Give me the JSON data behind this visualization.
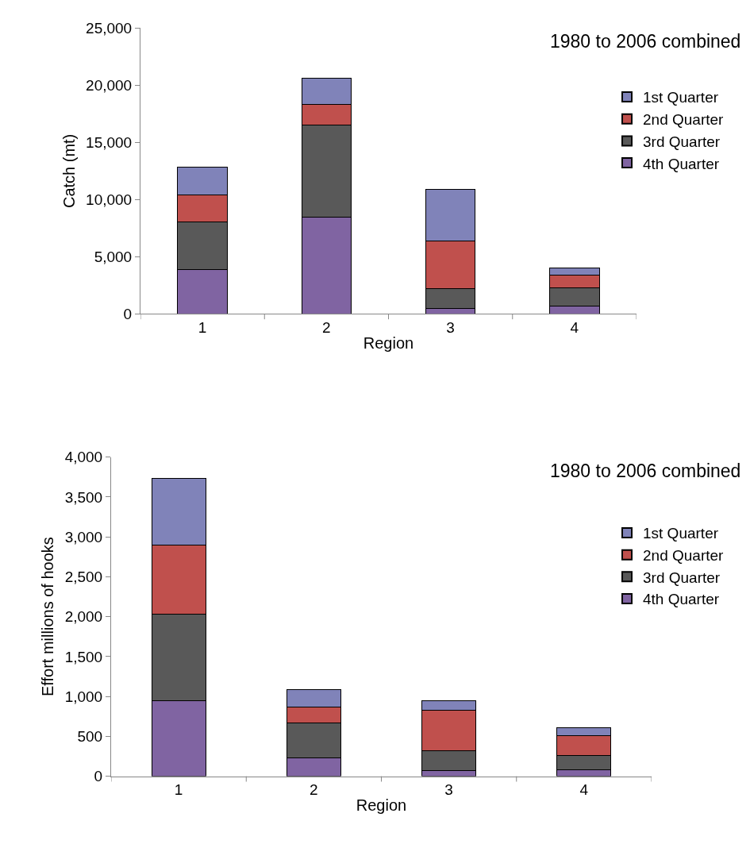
{
  "chart_data": [
    {
      "type": "bar",
      "stacked": true,
      "categories": [
        "1",
        "2",
        "3",
        "4"
      ],
      "xlabel": "Region",
      "ylabel": "Catch (mt)",
      "annotations": [
        "1980 to 2006 combined"
      ],
      "ylim": [
        0,
        25000
      ],
      "yticks": [
        0,
        {
          "value": 5000,
          "label": "5,000"
        },
        {
          "value": 10000,
          "label": "10,000"
        },
        {
          "value": 15000,
          "label": "15,000"
        },
        {
          "value": 20000,
          "label": "20,000"
        },
        {
          "value": 25000,
          "label": "25,000"
        }
      ],
      "legend": "top right",
      "grid": false,
      "series": [
        {
          "name": "4th Quarter",
          "color": "#8064a2",
          "values": [
            3850,
            8470,
            480,
            680
          ]
        },
        {
          "name": "3rd Quarter",
          "color": "#595959",
          "values": [
            4200,
            8080,
            1720,
            1610
          ]
        },
        {
          "name": "2nd Quarter",
          "color": "#c0504d",
          "values": [
            2370,
            1750,
            4160,
            1130
          ]
        },
        {
          "name": "1st Quarter",
          "color": "#8083b9",
          "values": [
            2400,
            2350,
            4520,
            560
          ]
        }
      ]
    },
    {
      "type": "bar",
      "stacked": true,
      "categories": [
        "1",
        "2",
        "3",
        "4"
      ],
      "xlabel": "Region",
      "ylabel": "Effort millions of hooks",
      "annotations": [
        "1980 to 2006 combined"
      ],
      "ylim": [
        0,
        4000
      ],
      "yticks": [
        0,
        500,
        {
          "value": 1000,
          "label": "1,000"
        },
        {
          "value": 1500,
          "label": "1,500"
        },
        {
          "value": 2000,
          "label": "2,000"
        },
        {
          "value": 2500,
          "label": "2,500"
        },
        {
          "value": 3000,
          "label": "3,000"
        },
        {
          "value": 3500,
          "label": "3,500"
        },
        {
          "value": 4000,
          "label": "4,000"
        }
      ],
      "legend": "top right",
      "grid": false,
      "series": [
        {
          "name": "4th Quarter",
          "color": "#8064a2",
          "values": [
            945,
            228,
            70,
            83
          ]
        },
        {
          "name": "3rd Quarter",
          "color": "#595959",
          "values": [
            1085,
            442,
            245,
            175
          ]
        },
        {
          "name": "2nd Quarter",
          "color": "#c0504d",
          "values": [
            866,
            200,
            507,
            249
          ]
        },
        {
          "name": "1st Quarter",
          "color": "#8083b9",
          "values": [
            836,
            215,
            123,
            101
          ]
        }
      ]
    }
  ]
}
